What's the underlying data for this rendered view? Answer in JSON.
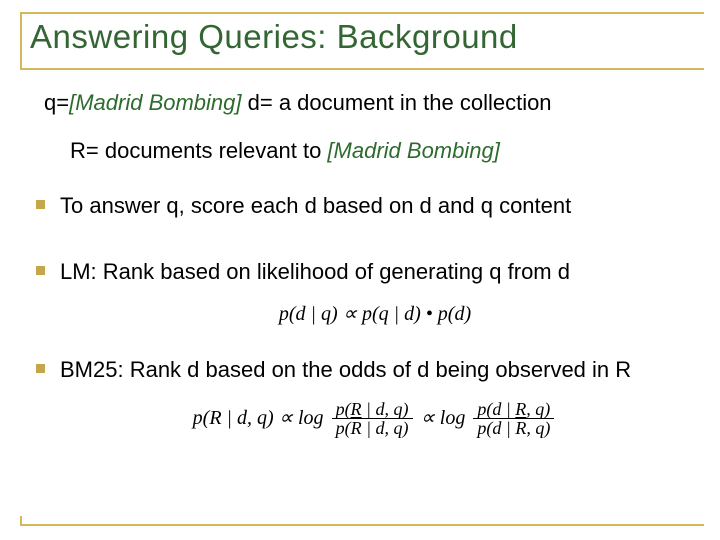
{
  "colors": {
    "title": "#336633",
    "accent_line": "#d4b85a",
    "bullet": "#c2a84a",
    "italic_green": "#2e6b2e",
    "text": "#000000",
    "background": "#ffffff"
  },
  "typography": {
    "title_fontsize": 33,
    "body_fontsize": 22,
    "formula_fontsize": 20
  },
  "title": "Answering Queries: Background",
  "line_q": {
    "prefix": "q=",
    "italic": "[Madrid Bombing]",
    "suffix": "  d= a document in the collection"
  },
  "line_r": {
    "prefix": "R= documents relevant to ",
    "italic": "[Madrid Bombing]"
  },
  "bullets": [
    "To answer q, score each d based on d and q content",
    "LM: Rank based on likelihood of generating q from d",
    "BM25: Rank d based on the odds of d being observed in R"
  ],
  "formula_lm": "p(d | q) ∝ p(q | d) • p(d)",
  "formula_bm25": {
    "lhs": "p(R | d, q) ∝ log",
    "frac1_num": "p(R | d, q)",
    "frac1_den_pre": "p(",
    "frac1_den_bar": "R",
    "frac1_den_post": " | d, q)",
    "mid": " ∝ log",
    "frac2_num": "p(d | R, q)",
    "frac2_den_pre": "p(d | ",
    "frac2_den_bar": "R",
    "frac2_den_post": ", q)"
  }
}
